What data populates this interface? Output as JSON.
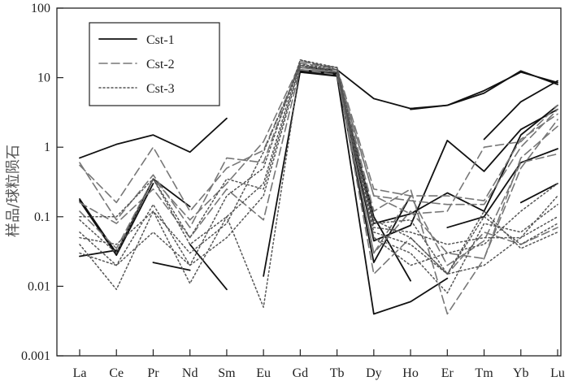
{
  "chart_data": {
    "type": "line",
    "title": "",
    "xlabel": "",
    "ylabel": "样品/球粒陨石",
    "yscale": "log",
    "ylim": [
      0.001,
      100
    ],
    "yticks": [
      {
        "value": 100,
        "label": "100"
      },
      {
        "value": 10,
        "label": "10"
      },
      {
        "value": 1,
        "label": "1"
      },
      {
        "value": 0.1,
        "label": "0.1"
      },
      {
        "value": 0.01,
        "label": "0.01"
      },
      {
        "value": 0.001,
        "label": "0.001"
      }
    ],
    "categories": [
      "La",
      "Ce",
      "Pr",
      "Nd",
      "Sm",
      "Eu",
      "Gd",
      "Tb",
      "Dy",
      "Ho",
      "Er",
      "Tm",
      "Yb",
      "Lu"
    ],
    "legend": [
      {
        "name": "Cst-1",
        "style": "solid",
        "color": "#111111"
      },
      {
        "name": "Cst-2",
        "style": "dashed",
        "color": "#777777"
      },
      {
        "name": "Cst-3",
        "style": "dotted",
        "color": "#555555"
      }
    ],
    "legend_position": "top-left",
    "series": [
      {
        "group": "Cst-1",
        "name": "Cst-1 a",
        "values": [
          0.7,
          1.1,
          1.5,
          0.85,
          2.6,
          null,
          null,
          null,
          null,
          null,
          null,
          null,
          null,
          null
        ]
      },
      {
        "group": "Cst-1",
        "name": "Cst-1 b",
        "values": [
          null,
          null,
          null,
          null,
          null,
          null,
          14,
          13,
          5,
          3.6,
          4,
          6.5,
          12,
          8.5
        ]
      },
      {
        "group": "Cst-1",
        "name": "Cst-1 c",
        "values": [
          null,
          null,
          null,
          null,
          null,
          null,
          null,
          null,
          null,
          3.5,
          4,
          6,
          12.5,
          8
        ]
      },
      {
        "group": "Cst-1",
        "name": "Cst-1 d",
        "values": [
          0.18,
          0.03,
          0.35,
          0.14,
          null,
          null,
          null,
          null,
          null,
          null,
          null,
          null,
          null,
          null
        ]
      },
      {
        "group": "Cst-1",
        "name": "Cst-1 e",
        "values": [
          0.17,
          0.028,
          0.3,
          null,
          null,
          null,
          null,
          null,
          null,
          null,
          null,
          null,
          null,
          null
        ]
      },
      {
        "group": "Cst-1",
        "name": "Cst-1 f",
        "values": [
          0.027,
          0.033,
          null,
          null,
          null,
          null,
          null,
          null,
          null,
          null,
          null,
          null,
          null,
          null
        ]
      },
      {
        "group": "Cst-1",
        "name": "Cst-1 g",
        "values": [
          null,
          null,
          0.022,
          0.017,
          null,
          null,
          null,
          null,
          null,
          null,
          null,
          null,
          null,
          null
        ]
      },
      {
        "group": "Cst-1",
        "name": "Cst-1 h",
        "values": [
          null,
          null,
          null,
          0.04,
          0.009,
          null,
          null,
          null,
          null,
          null,
          null,
          null,
          null,
          null
        ]
      },
      {
        "group": "Cst-1",
        "name": "Cst-1 i",
        "values": [
          null,
          null,
          null,
          null,
          null,
          0.014,
          12.5,
          11,
          0.022,
          0.2,
          null,
          null,
          null,
          null
        ]
      },
      {
        "group": "Cst-1",
        "name": "Cst-1 j",
        "values": [
          null,
          null,
          null,
          null,
          null,
          null,
          12,
          10.5,
          0.004,
          0.006,
          0.013,
          null,
          null,
          null
        ]
      },
      {
        "group": "Cst-1",
        "name": "Cst-1 k",
        "values": [
          null,
          null,
          null,
          null,
          null,
          null,
          13,
          11.5,
          0.08,
          0.11,
          0.22,
          0.12,
          1.5,
          4
        ]
      },
      {
        "group": "Cst-1",
        "name": "Cst-1 l",
        "values": [
          null,
          null,
          null,
          null,
          null,
          null,
          12.5,
          11,
          0.045,
          0.075,
          1.25,
          0.45,
          1.8,
          3.5
        ]
      },
      {
        "group": "Cst-1",
        "name": "Cst-1 m",
        "values": [
          null,
          null,
          null,
          null,
          null,
          null,
          null,
          null,
          null,
          null,
          0.07,
          0.1,
          0.6,
          0.95
        ]
      },
      {
        "group": "Cst-1",
        "name": "Cst-1 n",
        "values": [
          null,
          null,
          null,
          null,
          null,
          null,
          null,
          null,
          null,
          null,
          null,
          null,
          0.16,
          0.3
        ]
      },
      {
        "group": "Cst-1",
        "name": "Cst-1 o",
        "values": [
          null,
          null,
          null,
          null,
          null,
          null,
          null,
          null,
          null,
          null,
          null,
          1.3,
          4.5,
          9
        ]
      },
      {
        "group": "Cst-1",
        "name": "Cst-1 p",
        "values": [
          null,
          null,
          null,
          null,
          null,
          null,
          12,
          11,
          0.1,
          0.012,
          null,
          null,
          null,
          null
        ]
      },
      {
        "group": "Cst-2",
        "name": "Cst-2 a",
        "values": [
          0.6,
          0.09,
          0.4,
          0.07,
          0.7,
          0.6,
          17,
          14,
          0.25,
          0.2,
          0.2,
          0.17,
          1.3,
          3
        ]
      },
      {
        "group": "Cst-2",
        "name": "Cst-2 b",
        "values": [
          0.55,
          0.16,
          1.0,
          0.12,
          0.5,
          0.9,
          15,
          13,
          0.2,
          0.17,
          0.15,
          0.15,
          1.0,
          3.5
        ]
      },
      {
        "group": "Cst-2",
        "name": "Cst-2 c",
        "values": [
          0.12,
          0.035,
          0.35,
          0.09,
          0.3,
          1.2,
          16,
          14,
          0.12,
          0.25,
          0.004,
          0.025,
          0.5,
          2.5
        ]
      },
      {
        "group": "Cst-2",
        "name": "Cst-2 d",
        "values": [
          0.16,
          0.08,
          0.25,
          0.05,
          0.25,
          0.09,
          14,
          12,
          0.03,
          0.12,
          0.03,
          0.025,
          0.7,
          2
        ]
      },
      {
        "group": "Cst-2",
        "name": "Cst-2 e",
        "values": [
          null,
          null,
          null,
          null,
          null,
          null,
          13,
          12,
          0.2,
          0.11,
          0.12,
          1.0,
          1.2,
          4
        ]
      },
      {
        "group": "Cst-2",
        "name": "Cst-2 f",
        "values": [
          null,
          null,
          null,
          null,
          null,
          null,
          14,
          12,
          0.015,
          0.05,
          0.015,
          0.06,
          0.04,
          0.07
        ]
      },
      {
        "group": "Cst-2",
        "name": "Cst-2 g",
        "values": [
          null,
          null,
          null,
          null,
          null,
          null,
          13,
          11,
          0.03,
          0.2,
          0.02,
          0.045,
          0.6,
          0.8
        ]
      },
      {
        "group": "Cst-3",
        "name": "Cst-3 a",
        "values": [
          0.1,
          0.1,
          0.35,
          0.04,
          0.1,
          0.3,
          18,
          13,
          0.07,
          0.06,
          0.04,
          0.05,
          0.05,
          0.2
        ]
      },
      {
        "group": "Cst-3",
        "name": "Cst-3 b",
        "values": [
          0.09,
          0.03,
          0.35,
          0.05,
          0.35,
          0.25,
          16,
          12,
          0.06,
          0.04,
          0.015,
          0.1,
          0.04,
          0.08
        ]
      },
      {
        "group": "Cst-3",
        "name": "Cst-3 c",
        "values": [
          0.06,
          0.02,
          0.15,
          0.02,
          0.2,
          0.5,
          18,
          14,
          0.08,
          0.09,
          0.015,
          0.12,
          0.035,
          0.06
        ]
      },
      {
        "group": "Cst-3",
        "name": "Cst-3 d",
        "values": [
          0.04,
          0.009,
          0.12,
          0.011,
          0.1,
          0.005,
          15,
          13,
          0.05,
          0.03,
          0.008,
          0.08,
          0.06,
          0.15
        ]
      },
      {
        "group": "Cst-3",
        "name": "Cst-3 e",
        "values": [
          0.03,
          0.02,
          0.06,
          0.02,
          0.05,
          0.2,
          15,
          14,
          0.09,
          0.05,
          0.015,
          0.02,
          0.05,
          0.1
        ]
      },
      {
        "group": "Cst-3",
        "name": "Cst-3 f",
        "values": [
          0.05,
          0.04,
          0.12,
          0.03,
          0.08,
          0.85,
          15,
          12,
          0.05,
          0.02,
          0.03,
          0.04,
          0.12,
          0.3
        ]
      }
    ]
  }
}
